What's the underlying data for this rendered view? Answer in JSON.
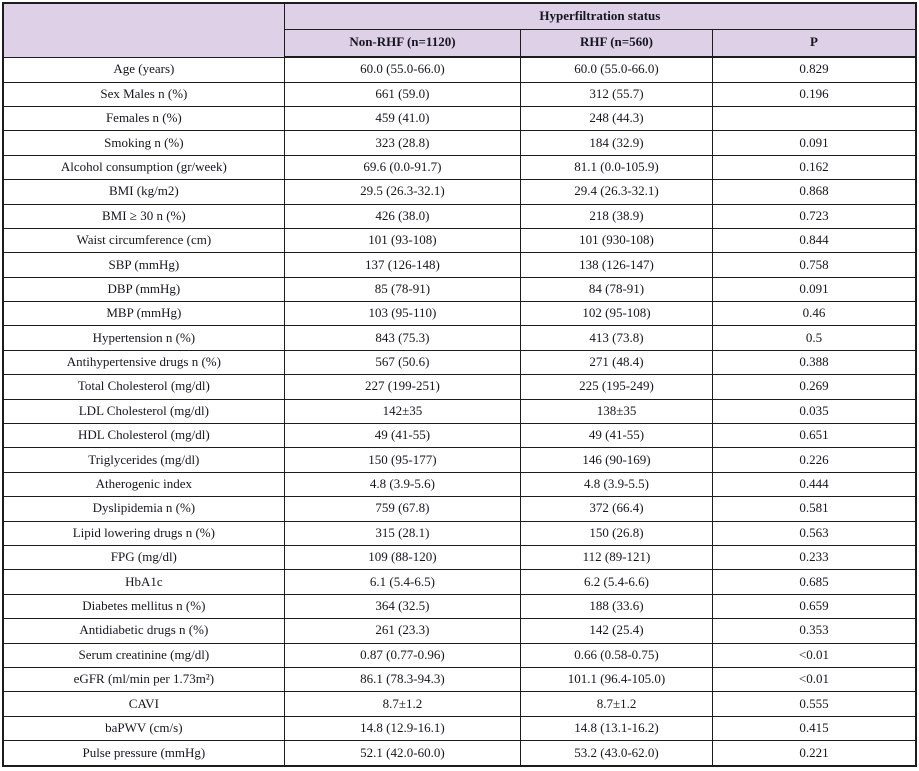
{
  "table": {
    "title": "Hyperfiltration status",
    "corner_label": "",
    "columns": [
      "Non-RHF (n=1120)",
      "RHF (n=560)",
      "P"
    ],
    "rows": [
      {
        "label": "Age (years)",
        "non_rhf": "60.0 (55.0-66.0)",
        "rhf": "60.0 (55.0-66.0)",
        "p": "0.829"
      },
      {
        "label": "Sex Males n (%)",
        "non_rhf": "661 (59.0)",
        "rhf": "312 (55.7)",
        "p": "0.196"
      },
      {
        "label": "Females n (%)",
        "non_rhf": "459 (41.0)",
        "rhf": "248 (44.3)",
        "p": ""
      },
      {
        "label": "Smoking n (%)",
        "non_rhf": "323 (28.8)",
        "rhf": "184 (32.9)",
        "p": "0.091"
      },
      {
        "label": "Alcohol consumption (gr/week)",
        "non_rhf": "69.6 (0.0-91.7)",
        "rhf": "81.1 (0.0-105.9)",
        "p": "0.162"
      },
      {
        "label": "BMI (kg/m2)",
        "non_rhf": "29.5 (26.3-32.1)",
        "rhf": "29.4 (26.3-32.1)",
        "p": "0.868"
      },
      {
        "label": "BMI ≥ 30 n (%)",
        "non_rhf": "426 (38.0)",
        "rhf": "218 (38.9)",
        "p": "0.723"
      },
      {
        "label": "Waist circumference (cm)",
        "non_rhf": "101 (93-108)",
        "rhf": "101 (930-108)",
        "p": "0.844"
      },
      {
        "label": "SBP (mmHg)",
        "non_rhf": "137 (126-148)",
        "rhf": "138 (126-147)",
        "p": "0.758"
      },
      {
        "label": "DBP (mmHg)",
        "non_rhf": "85 (78-91)",
        "rhf": "84 (78-91)",
        "p": "0.091"
      },
      {
        "label": "MBP (mmHg)",
        "non_rhf": "103 (95-110)",
        "rhf": "102 (95-108)",
        "p": "0.46"
      },
      {
        "label": "Hypertension n (%)",
        "non_rhf": "843 (75.3)",
        "rhf": "413 (73.8)",
        "p": "0.5"
      },
      {
        "label": "Antihypertensive drugs n (%)",
        "non_rhf": "567 (50.6)",
        "rhf": "271 (48.4)",
        "p": "0.388"
      },
      {
        "label": "Total Cholesterol (mg/dl)",
        "non_rhf": "227 (199-251)",
        "rhf": "225 (195-249)",
        "p": "0.269"
      },
      {
        "label": "LDL Cholesterol (mg/dl)",
        "non_rhf": "142±35",
        "rhf": "138±35",
        "p": "0.035"
      },
      {
        "label": "HDL Cholesterol (mg/dl)",
        "non_rhf": "49 (41-55)",
        "rhf": "49 (41-55)",
        "p": "0.651"
      },
      {
        "label": "Triglycerides (mg/dl)",
        "non_rhf": "150 (95-177)",
        "rhf": "146 (90-169)",
        "p": "0.226"
      },
      {
        "label": "Atherogenic index",
        "non_rhf": "4.8 (3.9-5.6)",
        "rhf": "4.8 (3.9-5.5)",
        "p": "0.444"
      },
      {
        "label": "Dyslipidemia n (%)",
        "non_rhf": "759 (67.8)",
        "rhf": "372 (66.4)",
        "p": "0.581"
      },
      {
        "label": "Lipid lowering drugs n (%)",
        "non_rhf": "315 (28.1)",
        "rhf": "150 (26.8)",
        "p": "0.563"
      },
      {
        "label": "FPG (mg/dl)",
        "non_rhf": "109 (88-120)",
        "rhf": "112 (89-121)",
        "p": "0.233"
      },
      {
        "label": "HbA1c",
        "non_rhf": "6.1 (5.4-6.5)",
        "rhf": "6.2 (5.4-6.6)",
        "p": "0.685"
      },
      {
        "label": "Diabetes mellitus n (%)",
        "non_rhf": "364 (32.5)",
        "rhf": "188 (33.6)",
        "p": "0.659"
      },
      {
        "label": "Antidiabetic drugs n (%)",
        "non_rhf": "261 (23.3)",
        "rhf": "142 (25.4)",
        "p": "0.353"
      },
      {
        "label": "Serum creatinine (mg/dl)",
        "non_rhf": "0.87 (0.77-0.96)",
        "rhf": "0.66 (0.58-0.75)",
        "p": "<0.01"
      },
      {
        "label": "eGFR (ml/min per 1.73m²)",
        "non_rhf": "86.1 (78.3-94.3)",
        "rhf": "101.1 (96.4-105.0)",
        "p": "<0.01"
      },
      {
        "label": "CAVI",
        "non_rhf": "8.7±1.2",
        "rhf": "8.7±1.2",
        "p": "0.555"
      },
      {
        "label": "baPWV (cm/s)",
        "non_rhf": "14.8 (12.9-16.1)",
        "rhf": "14.8 (13.1-16.2)",
        "p": "0.415"
      },
      {
        "label": "Pulse pressure (mmHg)",
        "non_rhf": "52.1 (42.0-60.0)",
        "rhf": "53.2 (43.0-62.0)",
        "p": "0.221"
      }
    ]
  },
  "colors": {
    "header_bg": "#ded0e6",
    "border": "#1c1c1c",
    "text": "#15151f",
    "body_bg": "#ffffff"
  }
}
